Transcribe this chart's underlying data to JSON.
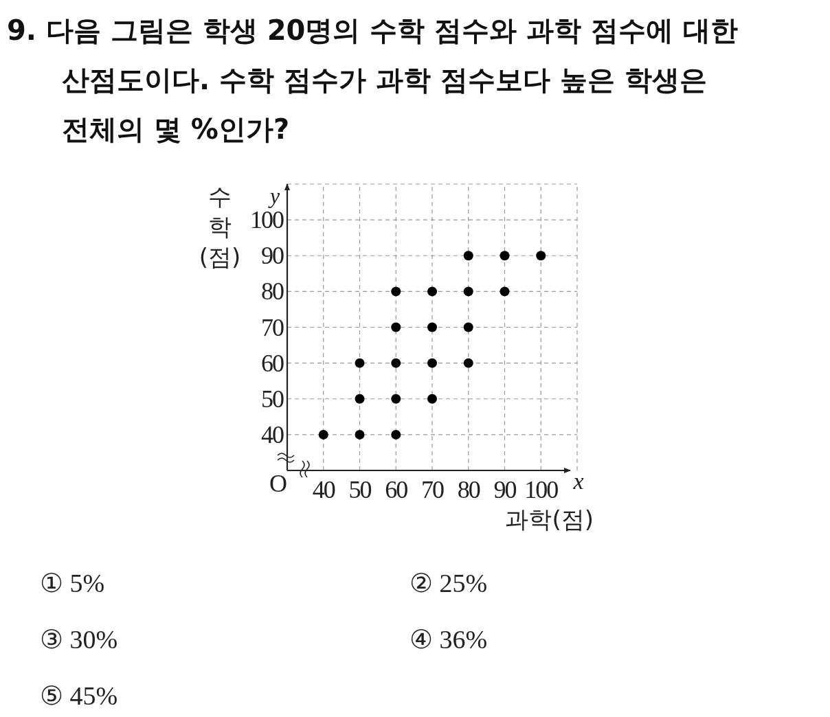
{
  "chart_data": {
    "type": "scatter",
    "title": "9.  다음 그림은 학생 20명의 수학 점수와 과학 점수에 대한 산점도이다. 수학 점수가 과학 점수보다 높은 학생은 전체의 몇 %인가?",
    "xlabel": "과학(점)",
    "ylabel": "수학(점)",
    "x": [
      40,
      50,
      50,
      50,
      60,
      60,
      60,
      60,
      60,
      70,
      70,
      70,
      70,
      80,
      80,
      80,
      80,
      90,
      90,
      100
    ],
    "series": [
      {
        "color": "#000000",
        "values": [
          40,
          40,
          50,
          60,
          40,
          50,
          60,
          70,
          80,
          50,
          60,
          70,
          80,
          60,
          70,
          80,
          90,
          80,
          90,
          90
        ]
      }
    ],
    "xlim": [
      30,
      110
    ],
    "ylim": [
      30,
      110
    ],
    "xticks": [
      40,
      50,
      60,
      70,
      80,
      90,
      100,
      {
        "value": 110,
        "label": null
      }
    ],
    "yticks": [
      40,
      50,
      60,
      70,
      80,
      90,
      100,
      {
        "value": 110,
        "label": null
      }
    ],
    "grid": true,
    "marker": "circle",
    "annotations": [
      "O",
      "x",
      "y",
      "① 5%",
      "② 25%",
      "③ 30%",
      "④ 36%",
      "⑤ 45%"
    ]
  }
}
